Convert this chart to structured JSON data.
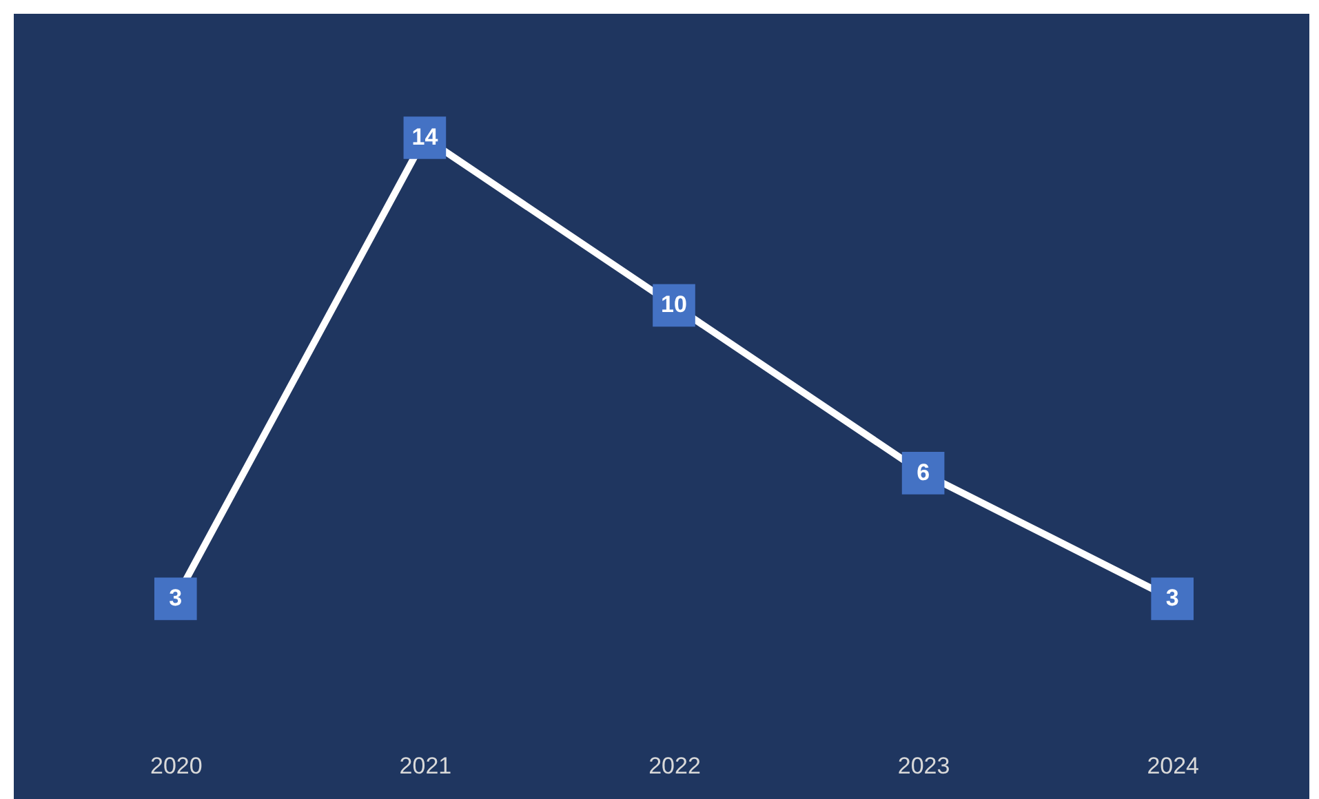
{
  "chart_data": {
    "type": "line",
    "categories": [
      "2020",
      "2021",
      "2022",
      "2023",
      "2024"
    ],
    "values": [
      3,
      14,
      10,
      6,
      3
    ],
    "color": "#ffffff",
    "marker": "square",
    "data_labels": true
  }
}
